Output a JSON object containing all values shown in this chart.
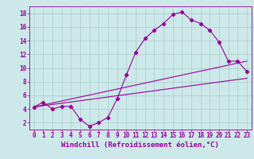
{
  "background_color": "#cce8e8",
  "grid_color": "#aacccc",
  "line_color": "#990099",
  "xlim": [
    -0.5,
    23.5
  ],
  "ylim": [
    1,
    19
  ],
  "xticks": [
    0,
    1,
    2,
    3,
    4,
    5,
    6,
    7,
    8,
    9,
    10,
    11,
    12,
    13,
    14,
    15,
    16,
    17,
    18,
    19,
    20,
    21,
    22,
    23
  ],
  "yticks": [
    2,
    4,
    6,
    8,
    10,
    12,
    14,
    16,
    18
  ],
  "xlabel": "Windchill (Refroidissement éolien,°C)",
  "line1_x": [
    0,
    1,
    2,
    3,
    4,
    5,
    6,
    7,
    8,
    9,
    10,
    11,
    12,
    13,
    14,
    15,
    16,
    17,
    18,
    19,
    20,
    21,
    22,
    23
  ],
  "line1_y": [
    4.3,
    5.0,
    4.0,
    4.4,
    4.4,
    2.5,
    1.5,
    2.0,
    2.8,
    5.5,
    9.0,
    12.3,
    14.3,
    15.5,
    16.5,
    17.8,
    18.2,
    17.0,
    16.5,
    15.5,
    13.8,
    11.0,
    11.0,
    9.5
  ],
  "line2_x": [
    0,
    23
  ],
  "line2_y": [
    4.3,
    11.0
  ],
  "line3_x": [
    0,
    23
  ],
  "line3_y": [
    4.3,
    8.5
  ],
  "tick_fontsize": 5.5,
  "xlabel_fontsize": 6.5
}
